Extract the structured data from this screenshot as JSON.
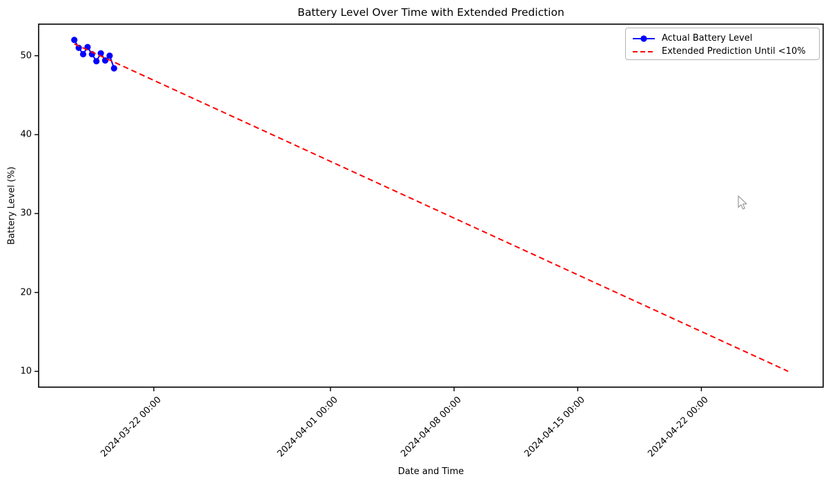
{
  "chart_data": {
    "type": "line",
    "title": "Battery Level Over Time with Extended Prediction",
    "xlabel": "Date and Time",
    "ylabel": "Battery Level (%)",
    "x_range": [
      "2024-03-15T11:30",
      "2024-04-28T21:30"
    ],
    "y_range": [
      8.0,
      54.0
    ],
    "x_ticks": [
      "2024-03-22 00:00",
      "2024-04-01 00:00",
      "2024-04-08 00:00",
      "2024-04-15 00:00",
      "2024-04-22 00:00"
    ],
    "y_ticks": [
      10,
      20,
      30,
      40,
      50
    ],
    "grid": false,
    "legend_position": "upper right",
    "series": [
      {
        "name": "Actual Battery Level",
        "color": "#0000ff",
        "line": "solid",
        "marker": "circle",
        "x": [
          "2024-03-17T12:00",
          "2024-03-17T18:00",
          "2024-03-18T00:00",
          "2024-03-18T06:00",
          "2024-03-18T12:00",
          "2024-03-18T18:00",
          "2024-03-19T00:00",
          "2024-03-19T06:00",
          "2024-03-19T12:00",
          "2024-03-19T18:00"
        ],
        "y": [
          52.0,
          51.0,
          50.2,
          51.1,
          50.2,
          49.3,
          50.3,
          49.4,
          50.0,
          48.4
        ]
      },
      {
        "name": "Extended Prediction Until <10%",
        "color": "#ff0000",
        "line": "dashed",
        "marker": "none",
        "x": [
          "2024-03-17T12:00",
          "2024-04-26T22:00"
        ],
        "y": [
          51.5,
          10.0
        ]
      }
    ]
  },
  "legend": {
    "items": [
      {
        "label": "Actual Battery Level",
        "color": "#0000ff",
        "style": "solid-marker"
      },
      {
        "label": "Extended Prediction Until <10%",
        "color": "#ff0000",
        "style": "dashed"
      }
    ]
  }
}
